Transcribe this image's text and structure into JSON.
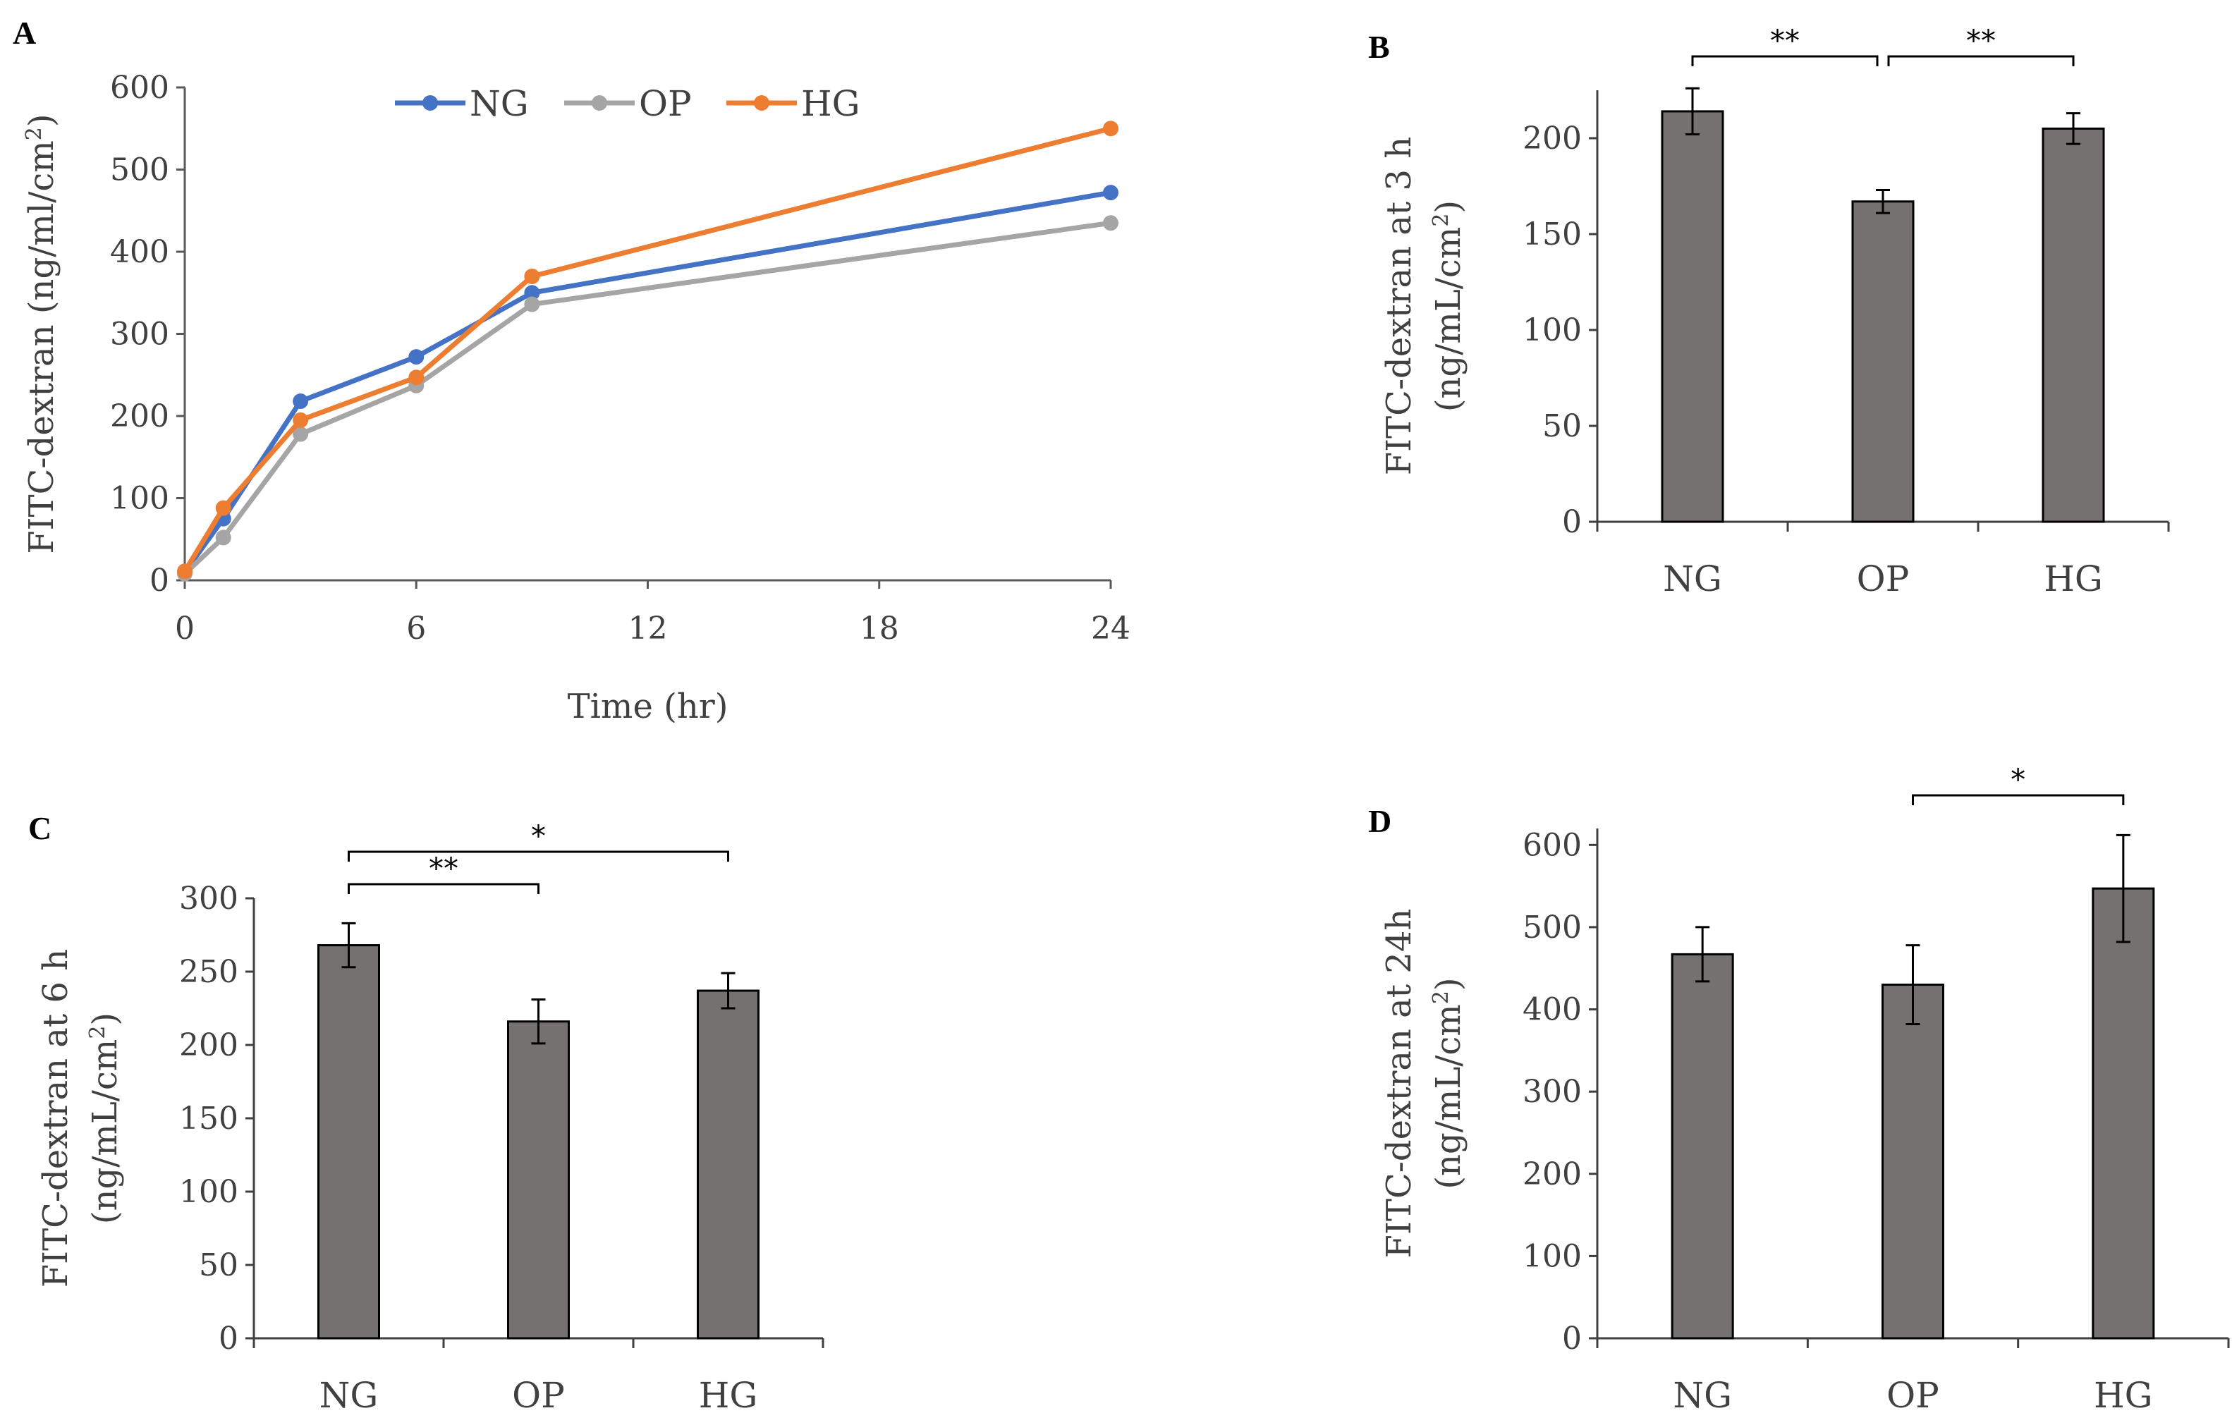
{
  "chart_data": [
    {
      "panel": "A",
      "type": "line",
      "xlabel": "Time (hr)",
      "ylabel_main": "FITC-dextran (ng/ml/cm",
      "ylabel_sup": "2",
      "ylabel_end": ")",
      "xlim": [
        0,
        24
      ],
      "ylim": [
        0,
        600
      ],
      "xticks": [
        "0",
        "6",
        "12",
        "18",
        "24"
      ],
      "yticks": [
        "0",
        "100",
        "200",
        "300",
        "400",
        "500",
        "600"
      ],
      "legend_position": "top-center",
      "series": [
        {
          "name": "NG",
          "color": "#4472c4",
          "x": [
            0,
            1,
            3,
            6,
            9,
            24
          ],
          "y": [
            10,
            75,
            218,
            272,
            350,
            472
          ]
        },
        {
          "name": "OP",
          "color": "#a5a5a5",
          "x": [
            0,
            1,
            3,
            6,
            9,
            24
          ],
          "y": [
            8,
            52,
            178,
            237,
            336,
            435
          ]
        },
        {
          "name": "HG",
          "color": "#ed7d31",
          "x": [
            0,
            1,
            3,
            6,
            9,
            24
          ],
          "y": [
            11,
            88,
            195,
            247,
            370,
            550
          ]
        }
      ]
    },
    {
      "panel": "B",
      "type": "bar",
      "ylabel_line1": "FITC-dextran at 3 h",
      "ylabel_line2_main": "(ng/mL/cm",
      "ylabel_line2_sup": "2",
      "ylabel_line2_end": ")",
      "categories": [
        "NG",
        "OP",
        "HG"
      ],
      "values": [
        214,
        167,
        205
      ],
      "errors": [
        12,
        6,
        8
      ],
      "ylim": [
        0,
        225
      ],
      "yticks": [
        "0",
        "50",
        "100",
        "150",
        "200"
      ],
      "ytick_values": [
        0,
        50,
        100,
        150,
        200
      ],
      "bar_color": "#767171",
      "significance": [
        {
          "from": 0,
          "to": 1,
          "label": "**",
          "level": 1
        },
        {
          "from": 1,
          "to": 2,
          "label": "**",
          "level": 1
        }
      ]
    },
    {
      "panel": "C",
      "type": "bar",
      "ylabel_line1": "FITC-dextran at 6 h",
      "ylabel_line2_main": "(ng/mL/cm",
      "ylabel_line2_sup": "2",
      "ylabel_line2_end": ")",
      "categories": [
        "NG",
        "OP",
        "HG"
      ],
      "values": [
        268,
        216,
        237
      ],
      "errors": [
        15,
        15,
        12
      ],
      "ylim": [
        0,
        300
      ],
      "yticks": [
        "0",
        "50",
        "100",
        "150",
        "200",
        "250",
        "300"
      ],
      "ytick_values": [
        0,
        50,
        100,
        150,
        200,
        250,
        300
      ],
      "bar_color": "#767171",
      "significance": [
        {
          "from": 0,
          "to": 1,
          "label": "**",
          "level": 1
        },
        {
          "from": 0,
          "to": 2,
          "label": "*",
          "level": 2
        }
      ]
    },
    {
      "panel": "D",
      "type": "bar",
      "ylabel_line1": "FITC-dextran at 24h",
      "ylabel_line2_main": "(ng/mL/cm",
      "ylabel_line2_sup": "2",
      "ylabel_line2_end": ")",
      "categories": [
        "NG",
        "OP",
        "HG"
      ],
      "values": [
        467,
        430,
        547
      ],
      "errors": [
        33,
        48,
        65
      ],
      "ylim": [
        0,
        620
      ],
      "yticks": [
        "0",
        "100",
        "200",
        "300",
        "400",
        "500",
        "600"
      ],
      "ytick_values": [
        0,
        100,
        200,
        300,
        400,
        500,
        600
      ],
      "bar_color": "#767171",
      "significance": [
        {
          "from": 1,
          "to": 2,
          "label": "*",
          "level": 1
        }
      ]
    }
  ]
}
